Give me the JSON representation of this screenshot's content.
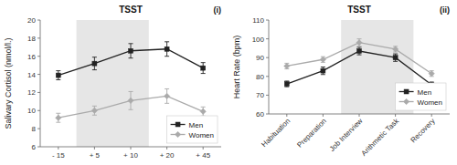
{
  "chart_data": [
    {
      "type": "line",
      "title": "TSST",
      "annotations": [
        "(i)"
      ],
      "ylabel": "Salivary Cortisol (nmol/l.)",
      "categories": [
        "- 15",
        "+ 5",
        "+ 10",
        "+ 20",
        "+ 45"
      ],
      "series": [
        {
          "name": "Men",
          "color": "#222222",
          "marker": "square",
          "values": [
            13.9,
            15.2,
            16.6,
            16.8,
            14.7
          ],
          "errors": [
            0.5,
            0.7,
            0.8,
            0.8,
            0.6
          ]
        },
        {
          "name": "Women",
          "color": "#aaaaaa",
          "marker": "diamond",
          "values": [
            9.2,
            10.0,
            11.1,
            11.6,
            9.9
          ],
          "errors": [
            0.5,
            0.5,
            1.0,
            0.8,
            0.5
          ]
        }
      ],
      "shade": [
        "+ 5",
        "+ 10"
      ],
      "ylim": [
        6,
        20
      ],
      "yticks": [
        6,
        8,
        10,
        12,
        14,
        16,
        18,
        20
      ],
      "grid": false,
      "legend": "lower right"
    },
    {
      "type": "line",
      "title": "TSST",
      "annotations": [
        "(ii)"
      ],
      "ylabel": "Heart Rate (bpm)",
      "categories": [
        "Habituation",
        "Preparation",
        "Job Interview",
        "Arithmetic Task",
        "Recovery"
      ],
      "series": [
        {
          "name": "Men",
          "color": "#222222",
          "marker": "square",
          "values": [
            76.0,
            83.0,
            93.5,
            90.0,
            75.5
          ],
          "errors": [
            1.5,
            2.0,
            2.0,
            2.0,
            1.5
          ]
        },
        {
          "name": "Women",
          "color": "#aaaaaa",
          "marker": "diamond",
          "values": [
            85.5,
            89.0,
            98.0,
            94.5,
            81.5
          ],
          "errors": [
            1.5,
            1.5,
            2.0,
            1.5,
            1.5
          ]
        }
      ],
      "shade": [
        "Job Interview",
        "Arithmetic Task"
      ],
      "ylim": [
        60,
        110
      ],
      "yticks": [
        60,
        70,
        80,
        90,
        100,
        110
      ],
      "grid": false,
      "legend": "lower right"
    }
  ]
}
